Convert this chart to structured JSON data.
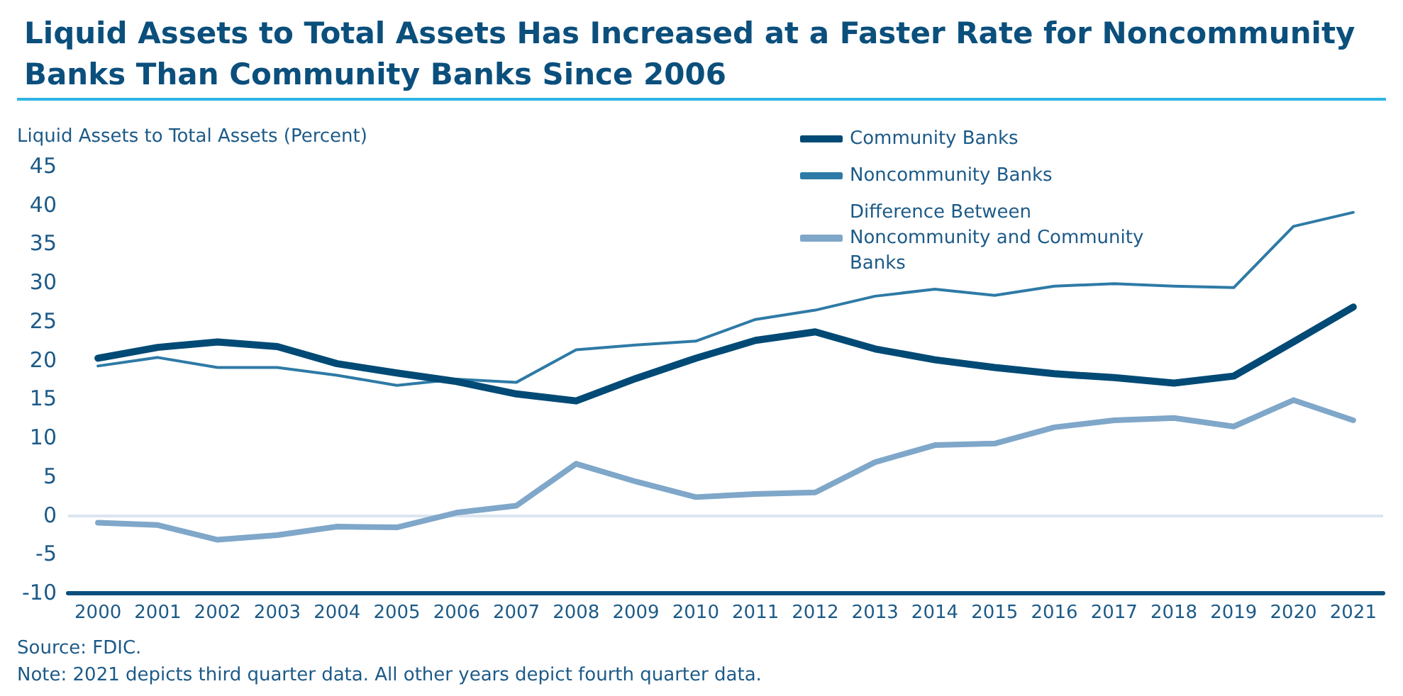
{
  "chart_data": {
    "type": "line",
    "title": "Liquid Assets to Total Assets Has Increased at a Faster Rate for Noncommunity Banks Than Community Banks Since 2006",
    "ylabel": "Liquid Assets to Total Assets (Percent)",
    "categories": [
      "2000",
      "2001",
      "2002",
      "2003",
      "2004",
      "2005",
      "2006",
      "2007",
      "2008",
      "2009",
      "2010",
      "2011",
      "2012",
      "2013",
      "2014",
      "2015",
      "2016",
      "2017",
      "2018",
      "2019",
      "2020",
      "2021"
    ],
    "series": [
      {
        "name": "Community Banks",
        "color": "#004a75",
        "values": [
          20.2,
          21.6,
          22.3,
          21.7,
          19.5,
          18.3,
          17.2,
          15.6,
          14.7,
          17.6,
          20.2,
          22.5,
          23.6,
          21.4,
          20.0,
          19.0,
          18.2,
          17.7,
          17.0,
          17.9,
          22.3,
          26.8
        ]
      },
      {
        "name": "Noncommunity Banks",
        "color": "#2e7aa6",
        "values": [
          19.2,
          20.3,
          19.0,
          19.0,
          18.0,
          16.7,
          17.5,
          17.1,
          21.3,
          21.9,
          22.4,
          25.2,
          26.4,
          28.2,
          29.1,
          28.3,
          29.5,
          29.8,
          29.5,
          29.3,
          37.2,
          39.0
        ]
      },
      {
        "name": "Difference Between Noncommunity and Community Banks",
        "color": "#7fa7c9",
        "values": [
          -1.0,
          -1.3,
          -3.2,
          -2.6,
          -1.5,
          -1.6,
          0.3,
          1.2,
          6.6,
          4.3,
          2.3,
          2.7,
          2.9,
          6.8,
          9.0,
          9.2,
          11.3,
          12.2,
          12.5,
          11.4,
          14.8,
          12.2
        ]
      }
    ],
    "ylim": [
      -10,
      45
    ],
    "yticks": [
      -10,
      -5,
      0,
      5,
      10,
      15,
      20,
      25,
      30,
      35,
      40,
      45
    ],
    "ref_lines": [
      {
        "axis": "y",
        "value": 0,
        "color": "#dbe5ef"
      }
    ],
    "annotations": [
      "Source: FDIC.",
      "Note: 2021 depicts third quarter data. All other years depict fourth quarter data."
    ],
    "grid": false,
    "legend": "top right",
    "marker": "none",
    "line_style": "solid"
  }
}
